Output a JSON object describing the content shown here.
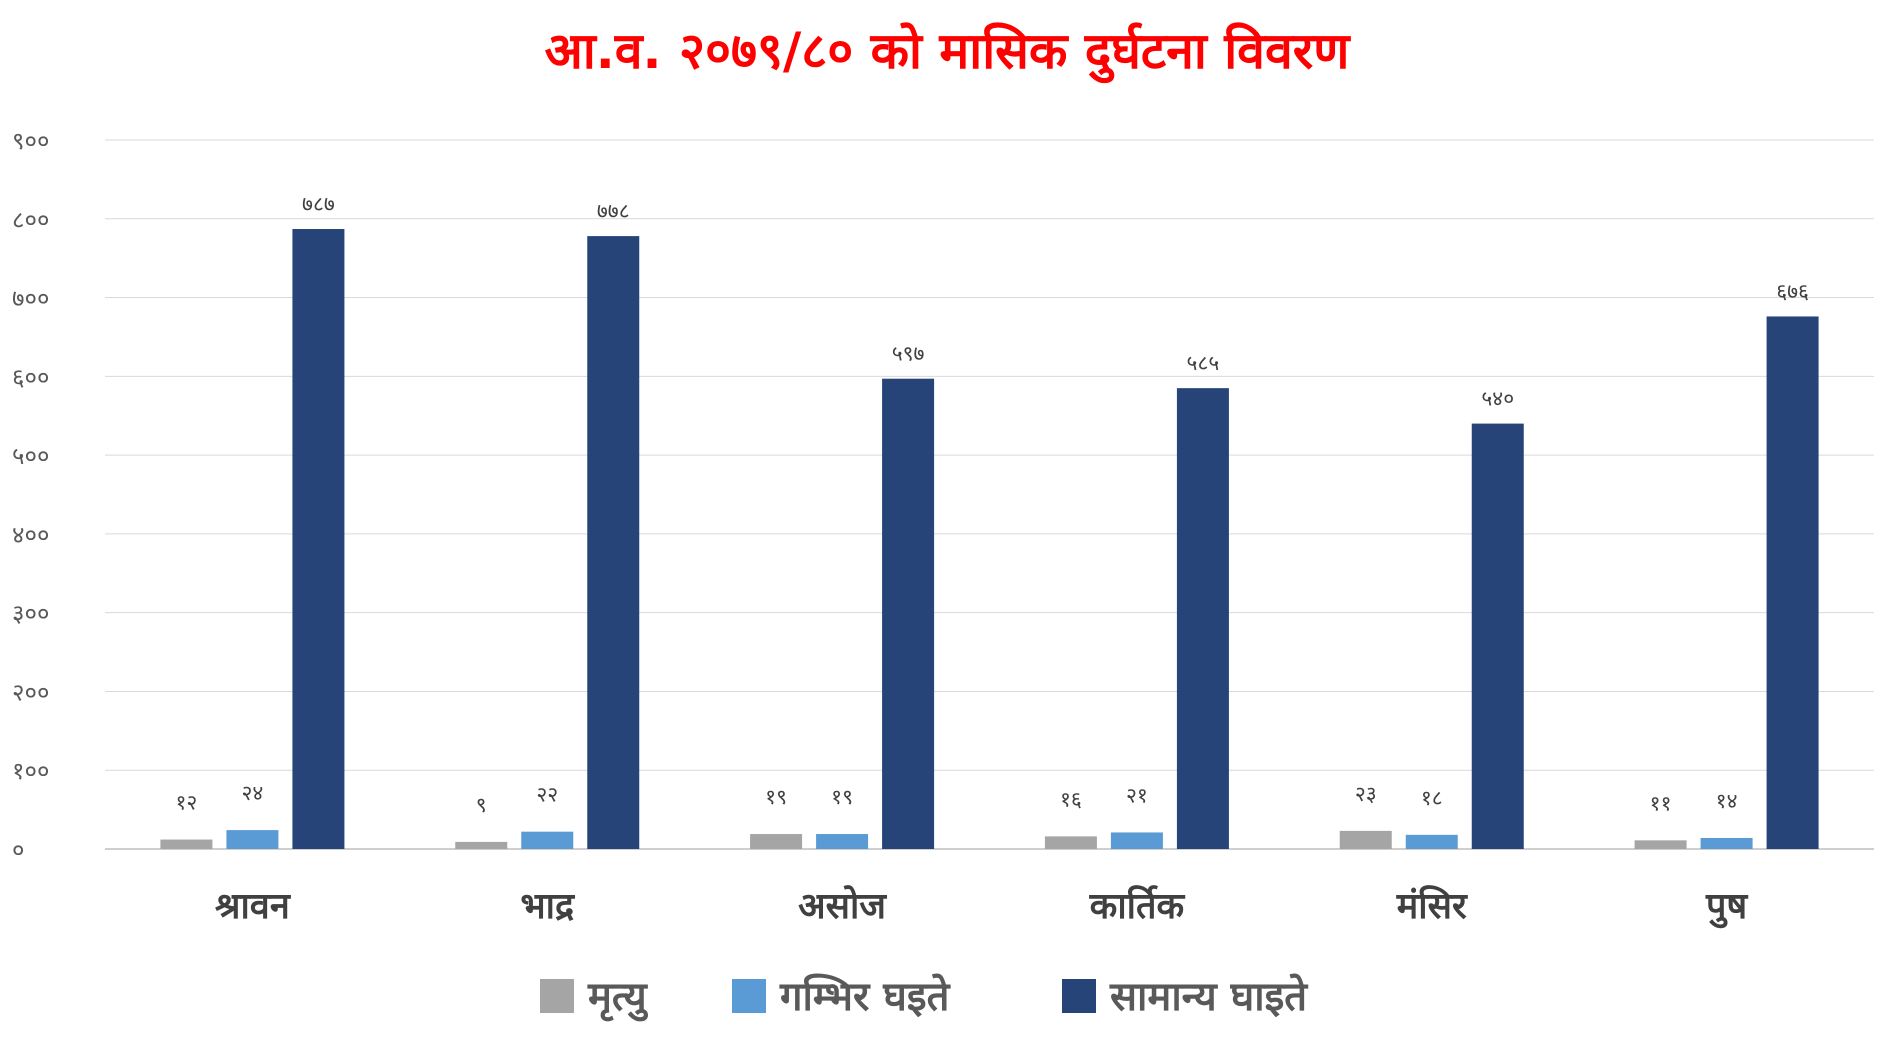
{
  "chart_data": {
    "type": "bar",
    "title": "आ.व. २०७९/८० को मासिक दुर्घटना विवरण",
    "title_color": "#ff0000",
    "categories": [
      "श्रावन",
      "भाद्र",
      "असोज",
      "कार्तिक",
      "मंसिर",
      "पुष"
    ],
    "series": [
      {
        "name": "मृत्यु",
        "color": "#a5a5a5",
        "values": [
          12,
          9,
          19,
          16,
          23,
          11
        ],
        "labels": [
          "१२",
          "९",
          "१९",
          "१६",
          "२३",
          "११"
        ]
      },
      {
        "name": "गम्भिर घइते",
        "color": "#5b9bd5",
        "values": [
          24,
          22,
          19,
          21,
          18,
          14
        ],
        "labels": [
          "२४",
          "२२",
          "१९",
          "२१",
          "१८",
          "१४"
        ]
      },
      {
        "name": "सामान्य घाइते",
        "color": "#264478",
        "values": [
          787,
          778,
          597,
          585,
          540,
          676
        ],
        "labels": [
          "७८७",
          "७७८",
          "५९७",
          "५८५",
          "५४०",
          "६७६"
        ]
      }
    ],
    "ylim": [
      0,
      900
    ],
    "yticks": [
      {
        "value": 0,
        "label": "०"
      },
      {
        "value": 100,
        "label": "१००"
      },
      {
        "value": 200,
        "label": "२००"
      },
      {
        "value": 300,
        "label": "३००"
      },
      {
        "value": 400,
        "label": "४००"
      },
      {
        "value": 500,
        "label": "५००"
      },
      {
        "value": 600,
        "label": "६००"
      },
      {
        "value": 700,
        "label": "७००"
      },
      {
        "value": 800,
        "label": "८००"
      },
      {
        "value": 900,
        "label": "९००"
      }
    ],
    "grid": true,
    "legend_position": "bottom"
  }
}
